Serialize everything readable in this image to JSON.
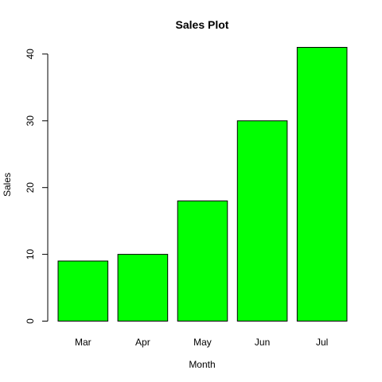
{
  "chart_data": {
    "type": "bar",
    "title": "Sales Plot",
    "xlabel": "Month",
    "ylabel": "Sales",
    "categories": [
      "Mar",
      "Apr",
      "May",
      "Jun",
      "Jul"
    ],
    "values": [
      9,
      10,
      18,
      30,
      41
    ],
    "ylim": [
      0,
      41
    ],
    "yticks": [
      0,
      10,
      20,
      30,
      40
    ],
    "bar_color": "#00ff00",
    "bar_border_color": "#000000",
    "grid": false,
    "legend": "none"
  }
}
